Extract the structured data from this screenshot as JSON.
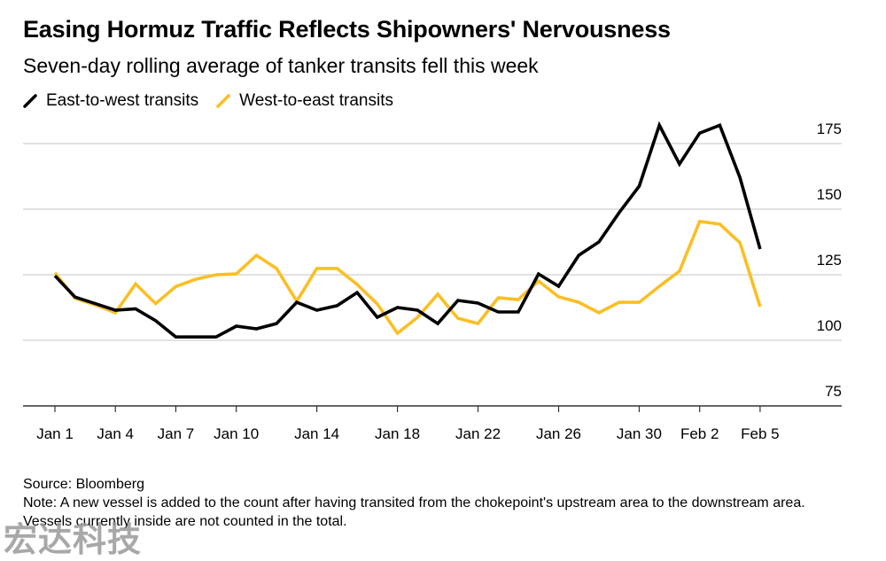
{
  "header": {
    "title": "Easing Hormuz Traffic Reflects Shipowners' Nervousness",
    "subtitle": "Seven-day rolling average of tanker transits fell this week"
  },
  "legend": [
    {
      "label": "East-to-west transits",
      "color": "#000000"
    },
    {
      "label": "West-to-east transits",
      "color": "#fbbf24"
    }
  ],
  "footer": {
    "source": "Source: Bloomberg",
    "note": "Note: A new vessel is added to the count after having transited from the chokepoint's upstream area to the downstream area. Vessels currently inside are not counted in the total."
  },
  "watermark": "宏达科技",
  "chart_data": {
    "type": "line",
    "title": "Easing Hormuz Traffic Reflects Shipowners' Nervousness",
    "subtitle": "Seven-day rolling average of tanker transits fell this week",
    "xlabel": "",
    "ylabel": "",
    "ylim": [
      75,
      185
    ],
    "yticks": [
      75,
      100,
      125,
      150,
      175
    ],
    "grid": true,
    "legend_position": "top-left",
    "x": [
      "Jan 1",
      "Jan 2",
      "Jan 3",
      "Jan 4",
      "Jan 5",
      "Jan 6",
      "Jan 7",
      "Jan 8",
      "Jan 9",
      "Jan 10",
      "Jan 11",
      "Jan 12",
      "Jan 13",
      "Jan 14",
      "Jan 15",
      "Jan 16",
      "Jan 17",
      "Jan 18",
      "Jan 19",
      "Jan 20",
      "Jan 21",
      "Jan 22",
      "Jan 23",
      "Jan 24",
      "Jan 25",
      "Jan 26",
      "Jan 27",
      "Jan 28",
      "Jan 29",
      "Jan 30",
      "Jan 31",
      "Feb 1",
      "Feb 2",
      "Feb 3",
      "Feb 4",
      "Feb 5"
    ],
    "xtick_labels": [
      {
        "index": 0,
        "label": "Jan 1"
      },
      {
        "index": 3,
        "label": "Jan 4"
      },
      {
        "index": 6,
        "label": "Jan 7"
      },
      {
        "index": 9,
        "label": "Jan 10"
      },
      {
        "index": 13,
        "label": "Jan 14"
      },
      {
        "index": 17,
        "label": "Jan 18"
      },
      {
        "index": 21,
        "label": "Jan 22"
      },
      {
        "index": 25,
        "label": "Jan 26"
      },
      {
        "index": 29,
        "label": "Jan 30"
      },
      {
        "index": 32,
        "label": "Feb 2"
      },
      {
        "index": 35,
        "label": "Feb 5"
      }
    ],
    "series": [
      {
        "name": "East-to-west transits",
        "color": "#000000",
        "values": [
          124.6,
          116.5,
          114,
          111.5,
          112,
          107.5,
          101.3,
          101.3,
          101.3,
          105.4,
          104.4,
          106.4,
          114.5,
          111.5,
          113.2,
          118.2,
          108.8,
          112.5,
          111.5,
          106.4,
          115.2,
          114.2,
          110.8,
          110.8,
          125.3,
          120.6,
          132.4,
          137.5,
          148.6,
          158.8,
          182,
          167.2,
          179,
          182,
          162,
          134.8
        ]
      },
      {
        "name": "West-to-east transits",
        "color": "#fbbf24",
        "values": [
          125.7,
          116,
          113.5,
          110.5,
          121.5,
          114,
          120.5,
          123.3,
          125,
          125.3,
          132.4,
          127.4,
          114.9,
          127.4,
          127.4,
          121.3,
          113.9,
          102.7,
          108.8,
          117.6,
          108.4,
          106.4,
          116.2,
          115.5,
          122.6,
          116.6,
          114.5,
          110.5,
          114.5,
          114.5,
          120.6,
          126.4,
          145.3,
          144.3,
          137.2,
          112.8
        ]
      }
    ]
  }
}
